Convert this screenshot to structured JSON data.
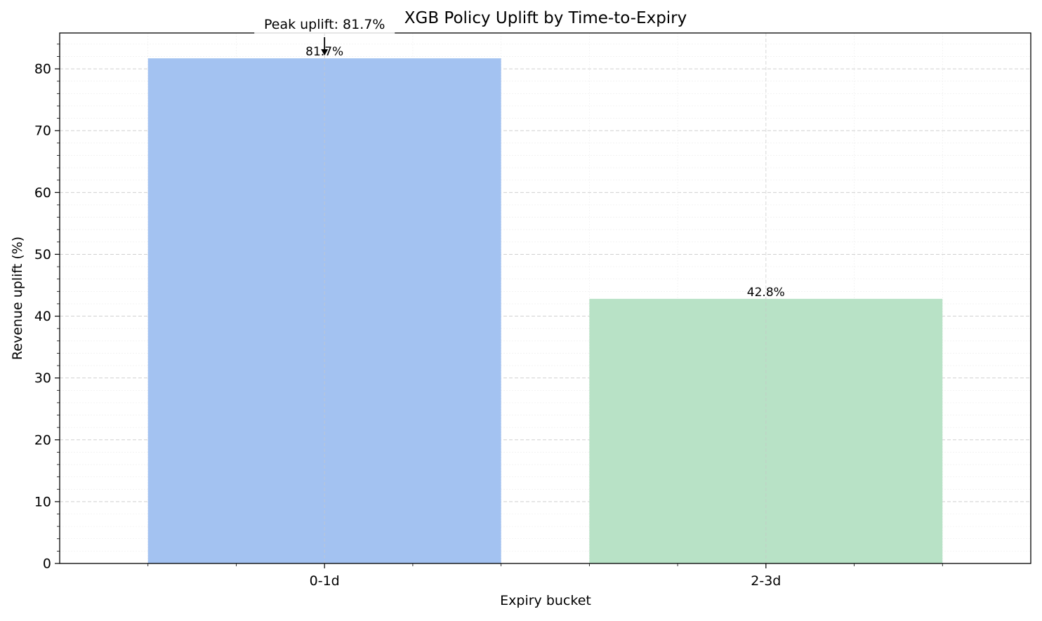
{
  "chart_data": {
    "type": "bar",
    "title": "XGB Policy Uplift by Time-to-Expiry",
    "xlabel": "Expiry bucket",
    "ylabel": "Revenue uplift (%)",
    "categories": [
      "0-1d",
      "2-3d"
    ],
    "values": [
      81.7,
      42.8
    ],
    "value_labels": [
      "81.7%",
      "42.8%"
    ],
    "bar_colors": [
      "#a3c2f1",
      "#b8e2c6"
    ],
    "ylim": [
      0,
      85.8
    ],
    "yticks": [
      0,
      10,
      20,
      30,
      40,
      50,
      60,
      70,
      80
    ],
    "ytick_labels": [
      "0",
      "10",
      "20",
      "30",
      "40",
      "50",
      "60",
      "70",
      "80"
    ],
    "annotation": {
      "text": "Peak uplift: 81.7%",
      "category": "0-1d",
      "value": 81.7
    },
    "grid": true,
    "legend": "none"
  }
}
